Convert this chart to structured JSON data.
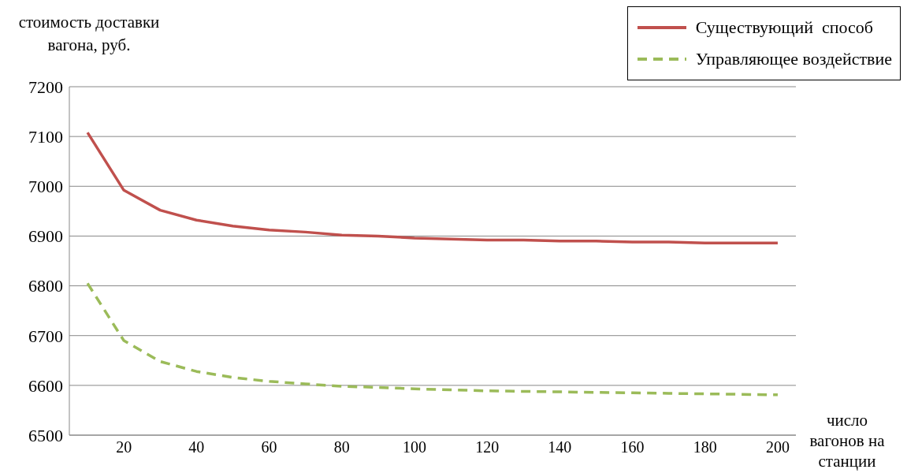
{
  "chart_data": {
    "type": "line",
    "ylabel": "стоимость доставки вагона, руб.",
    "xlabel": "число вагонов на станции",
    "x": [
      10,
      20,
      30,
      40,
      50,
      60,
      70,
      80,
      90,
      100,
      110,
      120,
      130,
      140,
      150,
      160,
      170,
      180,
      190,
      200
    ],
    "xlim": [
      5,
      205
    ],
    "xticks": [
      20,
      40,
      60,
      80,
      100,
      120,
      140,
      160,
      180,
      200
    ],
    "ylim": [
      6500,
      7200
    ],
    "yticks": [
      6500,
      6600,
      6700,
      6800,
      6900,
      7000,
      7100,
      7200
    ],
    "grid": "y",
    "legend": "top right",
    "marker": "none",
    "series": [
      {
        "name": "Существующий  способ",
        "color": "#c0504d",
        "line_style": "solid",
        "values": [
          7108,
          6992,
          6952,
          6932,
          6920,
          6912,
          6908,
          6902,
          6900,
          6896,
          6894,
          6892,
          6892,
          6890,
          6890,
          6888,
          6888,
          6886,
          6886,
          6886
        ]
      },
      {
        "name": "Управляющее воздействие",
        "color": "#9bbb59",
        "line_style": "dashed",
        "values": [
          6805,
          6690,
          6648,
          6628,
          6616,
          6608,
          6603,
          6598,
          6596,
          6593,
          6591,
          6589,
          6588,
          6587,
          6586,
          6585,
          6584,
          6583,
          6582,
          6581
        ]
      }
    ]
  }
}
